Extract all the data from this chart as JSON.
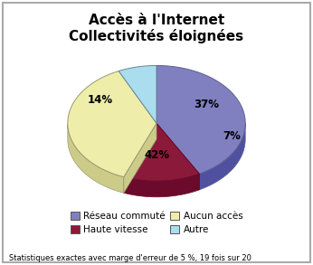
{
  "title": "Accès à l'Internet\nCollectivités éloignées",
  "slices": [
    42,
    14,
    37,
    7
  ],
  "labels": [
    "Réseau commuté",
    "Haute vitesse",
    "Aucun accès",
    "Autre"
  ],
  "colors": [
    "#8080c0",
    "#8b1a3a",
    "#eeeeaa",
    "#aaddee"
  ],
  "shadow_colors": [
    "#5050a0",
    "#6b0a2a",
    "#cccc88",
    "#88bbcc"
  ],
  "edge_colors": [
    "#606090",
    "#6a0a2a",
    "#999977",
    "#668899"
  ],
  "pct_labels": [
    "42%",
    "14%",
    "37%",
    "7%"
  ],
  "pct_angles": [
    270,
    148,
    30,
    345
  ],
  "pct_radii": [
    0.55,
    0.75,
    0.65,
    0.88
  ],
  "legend_labels": [
    "Réseau commuté",
    "Haute vitesse",
    "Aucun accès",
    "Autre"
  ],
  "footnote": "Statistiques exactes avec marge d'erreur de 5 %, 19 fois sur 20",
  "background_color": "#ffffff",
  "title_fontsize": 11,
  "startangle": 90
}
